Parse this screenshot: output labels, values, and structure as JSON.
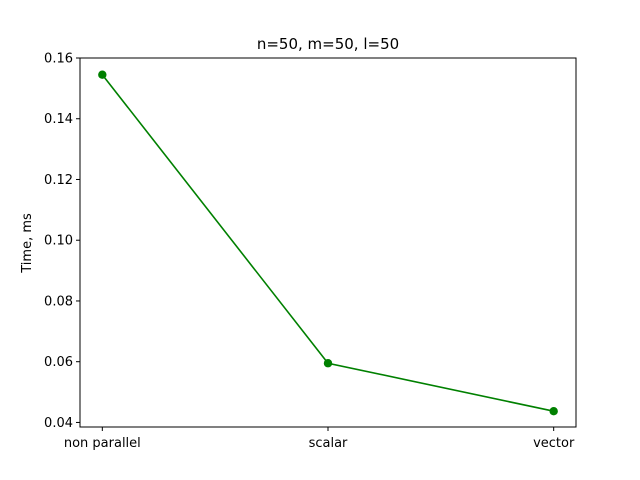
{
  "chart_data": {
    "type": "line",
    "title": "n=50, m=50, l=50",
    "xlabel": "",
    "ylabel": "Time, ms",
    "categories": [
      "non parallel",
      "scalar",
      "vector"
    ],
    "series": [
      {
        "values": [
          0.1545,
          0.0595,
          0.0437
        ],
        "color": "#008000",
        "marker": "circle"
      }
    ],
    "ylim": [
      0.0385,
      0.16
    ],
    "yticks": [
      0.04,
      0.06,
      0.08,
      0.1,
      0.12,
      0.14,
      0.16
    ],
    "ytick_labels": [
      "0.04",
      "0.06",
      "0.08",
      "0.10",
      "0.12",
      "0.14",
      "0.16"
    ],
    "grid": false,
    "legend": "none"
  }
}
